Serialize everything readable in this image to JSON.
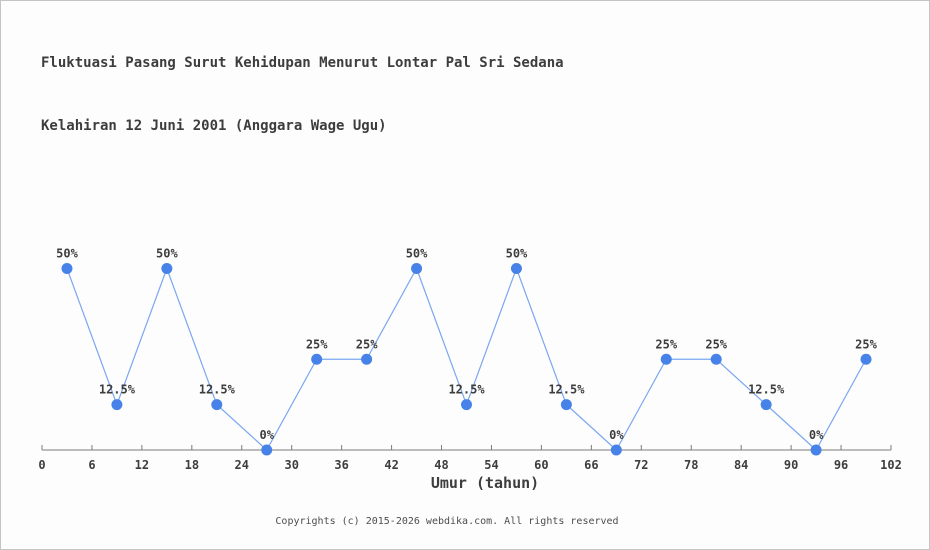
{
  "title": {
    "line1": "Fluktuasi Pasang Surut Kehidupan Menurut Lontar Pal Sri Sedana",
    "line2": "Kelahiran 12 Juni 2001 (Anggara Wage Ugu)"
  },
  "footer": "Copyrights (c) 2015-2026 webdika.com. All rights reserved",
  "chart_data": {
    "type": "line",
    "title": "Fluktuasi Pasang Surut Kehidupan Menurut Lontar Pal Sri Sedana Kelahiran 12 Juni 2001 (Anggara Wage Ugu)",
    "x": [
      3,
      9,
      15,
      21,
      27,
      33,
      39,
      45,
      51,
      57,
      63,
      69,
      75,
      81,
      87,
      93,
      99
    ],
    "values": [
      50,
      12.5,
      50,
      12.5,
      0,
      25,
      25,
      50,
      12.5,
      50,
      12.5,
      0,
      25,
      25,
      12.5,
      0,
      25
    ],
    "point_labels": [
      "50%",
      "12.5%",
      "50%",
      "12.5%",
      "0%",
      "25%",
      "25%",
      "50%",
      "12.5%",
      "50%",
      "12.5%",
      "0%",
      "25%",
      "25%",
      "12.5%",
      "0%",
      "25%"
    ],
    "x_ticks": [
      0,
      6,
      12,
      18,
      24,
      30,
      36,
      42,
      48,
      54,
      60,
      66,
      72,
      78,
      84,
      90,
      96,
      102
    ],
    "xlabel": "Umur (tahun)",
    "ylabel": "",
    "xlim": [
      0,
      102
    ],
    "ylim": [
      0,
      55
    ],
    "grid": false,
    "legend": "none",
    "y_axis_shown": false,
    "marker_color": "#4682e8",
    "line_color": "#7ba7f0",
    "axis_color": "#7a7a7a",
    "text_color": "#3d3d3d"
  }
}
